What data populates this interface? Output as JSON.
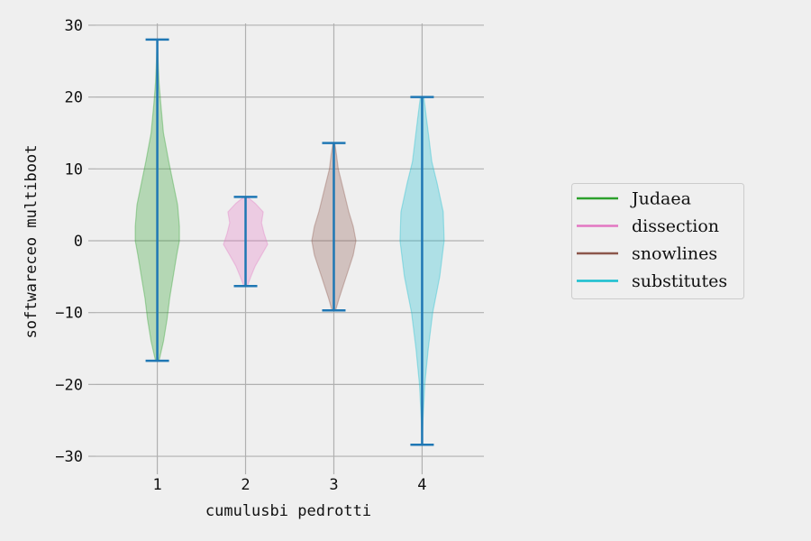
{
  "chart_data": {
    "type": "violin",
    "xlabel": "cumulusbi pedrotti",
    "ylabel": "softwareceo multiboot",
    "ylim": [
      -31.5,
      31.5
    ],
    "yticks": [
      30,
      20,
      10,
      0,
      -10,
      -20,
      -30
    ],
    "ytick_labels": [
      "30",
      "20",
      "10",
      "0",
      "−10",
      "−20",
      "−30"
    ],
    "xticks": [
      1,
      2,
      3,
      4
    ],
    "xtick_labels": [
      "1",
      "2",
      "3",
      "4"
    ],
    "grid": true,
    "legend_position": "right",
    "whisker_color": "#1f77b4",
    "series": [
      {
        "name": "Judaea",
        "position": 1,
        "color": "#2ca02c",
        "min": -16.7,
        "max": 28.0,
        "width_profile": [
          [
            -16.7,
            0.02
          ],
          [
            -14,
            0.07
          ],
          [
            -11,
            0.11
          ],
          [
            -8,
            0.14
          ],
          [
            -5,
            0.18
          ],
          [
            -2,
            0.22
          ],
          [
            0,
            0.25
          ],
          [
            2,
            0.25
          ],
          [
            5,
            0.23
          ],
          [
            8,
            0.18
          ],
          [
            11,
            0.13
          ],
          [
            15,
            0.07
          ],
          [
            19,
            0.04
          ],
          [
            22,
            0.02
          ],
          [
            25,
            0.01
          ],
          [
            28,
            0.0
          ]
        ]
      },
      {
        "name": "dissection",
        "position": 2,
        "color": "#e377c2",
        "min": -6.3,
        "max": 6.1,
        "width_profile": [
          [
            -6.3,
            0.02
          ],
          [
            -5,
            0.06
          ],
          [
            -3.5,
            0.11
          ],
          [
            -2,
            0.18
          ],
          [
            -0.5,
            0.25
          ],
          [
            1,
            0.21
          ],
          [
            2.5,
            0.18
          ],
          [
            4,
            0.2
          ],
          [
            5.2,
            0.11
          ],
          [
            6.1,
            0.02
          ]
        ]
      },
      {
        "name": "snowlines",
        "position": 3,
        "color": "#8c564b",
        "min": -9.7,
        "max": 13.6,
        "width_profile": [
          [
            -9.7,
            0.02
          ],
          [
            -8,
            0.06
          ],
          [
            -5,
            0.14
          ],
          [
            -2,
            0.22
          ],
          [
            0,
            0.25
          ],
          [
            2,
            0.22
          ],
          [
            4,
            0.17
          ],
          [
            7,
            0.11
          ],
          [
            10,
            0.05
          ],
          [
            12,
            0.03
          ],
          [
            13.6,
            0.01
          ]
        ]
      },
      {
        "name": "substitutes",
        "position": 4,
        "color": "#17becf",
        "min": -28.4,
        "max": 20.0,
        "width_profile": [
          [
            -28.4,
            0.0
          ],
          [
            -25,
            0.01
          ],
          [
            -20,
            0.03
          ],
          [
            -15,
            0.07
          ],
          [
            -10,
            0.12
          ],
          [
            -5,
            0.2
          ],
          [
            0,
            0.25
          ],
          [
            4,
            0.24
          ],
          [
            8,
            0.17
          ],
          [
            11,
            0.11
          ],
          [
            14,
            0.08
          ],
          [
            17,
            0.05
          ],
          [
            20,
            0.02
          ]
        ]
      }
    ]
  }
}
